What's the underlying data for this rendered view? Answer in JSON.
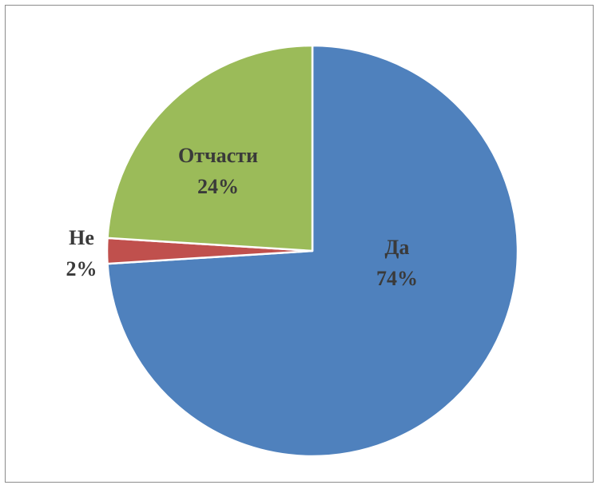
{
  "chart_data": {
    "type": "pie",
    "title": "",
    "start": "12 o'clock",
    "direction": "clockwise",
    "slices": [
      {
        "label": "Да",
        "value": 74,
        "value_label": "74%",
        "color": "#4f81bd"
      },
      {
        "label": "Не",
        "value": 2,
        "value_label": "2%",
        "color": "#c0504d"
      },
      {
        "label": "Отчасти",
        "value": 24,
        "value_label": "24%",
        "color": "#9bbb59"
      }
    ]
  }
}
